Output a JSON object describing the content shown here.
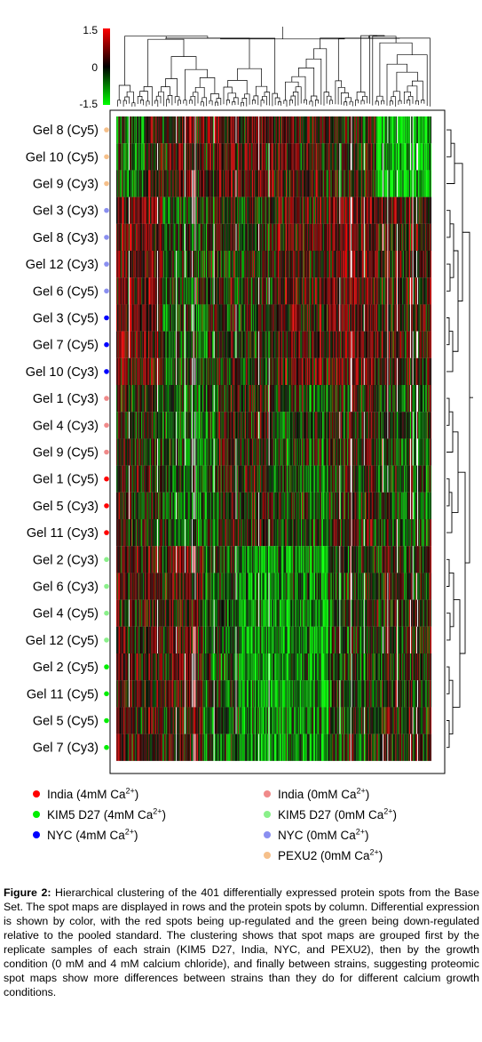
{
  "chart_data": {
    "type": "heatmap",
    "colorbar": {
      "max_label": "1.5",
      "mid_label": "0",
      "min_label": "-1.5",
      "high_color": "#ff0000",
      "mid_color": "#000000",
      "low_color": "#00ff00"
    },
    "n_columns": 401,
    "rows": [
      {
        "label": "Gel 8 (Cy5)",
        "group": "PEXU2 (0mM)",
        "dot_color": "#f6c08a",
        "pattern": "pexu"
      },
      {
        "label": "Gel 10 (Cy5)",
        "group": "PEXU2 (0mM)",
        "dot_color": "#f6c08a",
        "pattern": "pexu"
      },
      {
        "label": "Gel 9 (Cy3)",
        "group": "PEXU2 (0mM)",
        "dot_color": "#f6c08a",
        "pattern": "pexu"
      },
      {
        "label": "Gel 3 (Cy3)",
        "group": "NYC (0mM)",
        "dot_color": "#8a8ff0",
        "pattern": "nyc"
      },
      {
        "label": "Gel 8 (Cy3)",
        "group": "NYC (0mM)",
        "dot_color": "#8a8ff0",
        "pattern": "nyc"
      },
      {
        "label": "Gel 12 (Cy3)",
        "group": "NYC (0mM)",
        "dot_color": "#8a8ff0",
        "pattern": "nyc"
      },
      {
        "label": "Gel 6 (Cy5)",
        "group": "NYC (0mM)",
        "dot_color": "#8a8ff0",
        "pattern": "nyc"
      },
      {
        "label": "Gel 3 (Cy5)",
        "group": "NYC (4mM)",
        "dot_color": "#0000ff",
        "pattern": "nyc"
      },
      {
        "label": "Gel 7 (Cy5)",
        "group": "NYC (4mM)",
        "dot_color": "#0000ff",
        "pattern": "nyc"
      },
      {
        "label": "Gel 10 (Cy3)",
        "group": "NYC (4mM)",
        "dot_color": "#0000ff",
        "pattern": "nyc"
      },
      {
        "label": "Gel 1 (Cy3)",
        "group": "India (0mM)",
        "dot_color": "#f08a8a",
        "pattern": "india"
      },
      {
        "label": "Gel 4 (Cy3)",
        "group": "India (0mM)",
        "dot_color": "#f08a8a",
        "pattern": "india"
      },
      {
        "label": "Gel 9 (Cy5)",
        "group": "India (0mM)",
        "dot_color": "#f08a8a",
        "pattern": "india"
      },
      {
        "label": "Gel 1 (Cy5)",
        "group": "India (4mM)",
        "dot_color": "#ff0000",
        "pattern": "india"
      },
      {
        "label": "Gel 5 (Cy3)",
        "group": "India (4mM)",
        "dot_color": "#ff0000",
        "pattern": "india"
      },
      {
        "label": "Gel 11 (Cy3)",
        "group": "India (4mM)",
        "dot_color": "#ff0000",
        "pattern": "india"
      },
      {
        "label": "Gel 2 (Cy3)",
        "group": "KIM5 D27 (0mM)",
        "dot_color": "#8af08a",
        "pattern": "kim"
      },
      {
        "label": "Gel 6 (Cy3)",
        "group": "KIM5 D27 (0mM)",
        "dot_color": "#8af08a",
        "pattern": "kim"
      },
      {
        "label": "Gel 4 (Cy5)",
        "group": "KIM5 D27 (0mM)",
        "dot_color": "#8af08a",
        "pattern": "kim"
      },
      {
        "label": "Gel 12 (Cy5)",
        "group": "KIM5 D27 (0mM)",
        "dot_color": "#8af08a",
        "pattern": "kim"
      },
      {
        "label": "Gel 2 (Cy5)",
        "group": "KIM5 D27 (4mM)",
        "dot_color": "#00ee00",
        "pattern": "kim"
      },
      {
        "label": "Gel 11 (Cy5)",
        "group": "KIM5 D27 (4mM)",
        "dot_color": "#00ee00",
        "pattern": "kim"
      },
      {
        "label": "Gel 5 (Cy5)",
        "group": "KIM5 D27 (4mM)",
        "dot_color": "#00ee00",
        "pattern": "kim"
      },
      {
        "label": "Gel 7 (Cy3)",
        "group": "KIM5 D27 (4mM)",
        "dot_color": "#00ee00",
        "pattern": "kim"
      }
    ],
    "legend": [
      {
        "label": "India (4mM Ca",
        "suffix": ")",
        "sup": "2+",
        "color": "#ff0000"
      },
      {
        "label": "KIM5 D27 (4mM Ca",
        "suffix": ")",
        "sup": "2+",
        "color": "#00ee00"
      },
      {
        "label": "NYC (4mM Ca",
        "suffix": ")",
        "sup": "2+",
        "color": "#0000ff"
      },
      {
        "label": "India (0mM Ca",
        "suffix": ")",
        "sup": "2+",
        "color": "#f08a8a"
      },
      {
        "label": "KIM5 D27 (0mM Ca",
        "suffix": ")",
        "sup": "2+",
        "color": "#8af08a"
      },
      {
        "label": "NYC (0mM Ca",
        "suffix": ")",
        "sup": "2+",
        "color": "#8a8ff0"
      },
      {
        "label": "PEXU2 (0mM Ca",
        "suffix": ")",
        "sup": "2+",
        "color": "#f6c08a"
      }
    ]
  },
  "caption": {
    "heading": "Figure 2:",
    "text": " Hierarchical clustering of the 401 differentially expressed protein spots from the Base Set. The spot maps are displayed in rows and the protein spots by column. Differential expression is shown by color, with the red spots being up-regulated and the green being down-regulated relative to the pooled standard. The clustering shows that spot maps are grouped first by the replicate samples of each strain (KIM5 D27, India, NYC, and PEXU2), then by the growth condition (0 mM and 4 mM calcium chloride), and finally between strains, suggesting proteomic spot maps show more differences between strains than they do for different calcium growth conditions."
  }
}
